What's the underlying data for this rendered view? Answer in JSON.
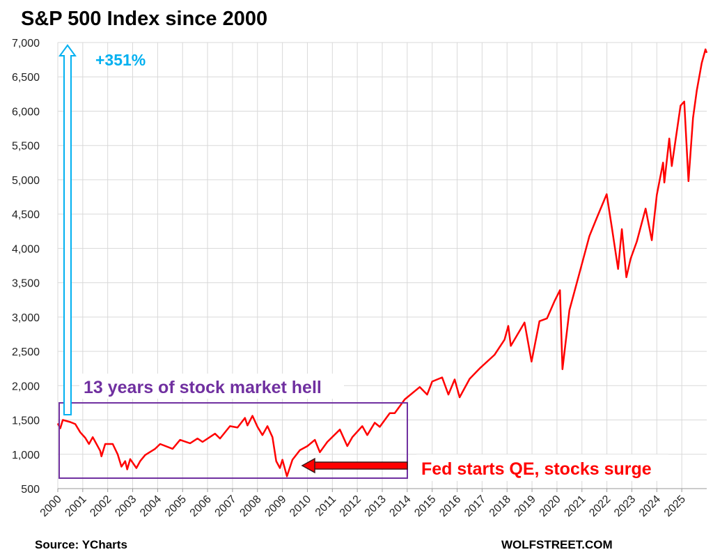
{
  "chart_data": {
    "type": "line",
    "title": "S&P 500  Index since 2000",
    "x": [
      2000.0,
      2000.1,
      2000.2,
      2000.5,
      2000.7,
      2000.9,
      2001.1,
      2001.25,
      2001.4,
      2001.7,
      2001.75,
      2001.9,
      2002.2,
      2002.4,
      2002.55,
      2002.7,
      2002.78,
      2002.9,
      2003.15,
      2003.3,
      2003.5,
      2003.9,
      2004.1,
      2004.6,
      2004.9,
      2005.3,
      2005.6,
      2005.8,
      2006.3,
      2006.5,
      2006.9,
      2007.2,
      2007.5,
      2007.6,
      2007.8,
      2008.0,
      2008.2,
      2008.4,
      2008.6,
      2008.75,
      2008.9,
      2009.0,
      2009.18,
      2009.4,
      2009.7,
      2010.0,
      2010.3,
      2010.5,
      2010.8,
      2011.3,
      2011.6,
      2011.8,
      2012.2,
      2012.4,
      2012.7,
      2012.9,
      2013.3,
      2013.5,
      2013.9,
      2014.5,
      2014.8,
      2015.0,
      2015.4,
      2015.65,
      2015.9,
      2016.1,
      2016.5,
      2016.9,
      2017.5,
      2017.9,
      2018.05,
      2018.15,
      2018.7,
      2018.98,
      2019.3,
      2019.6,
      2019.9,
      2020.12,
      2020.22,
      2020.5,
      2020.9,
      2021.3,
      2021.6,
      2021.99,
      2022.2,
      2022.45,
      2022.6,
      2022.78,
      2022.95,
      2023.2,
      2023.55,
      2023.8,
      2024.0,
      2024.25,
      2024.3,
      2024.5,
      2024.6,
      2024.95,
      2025.1,
      2025.27,
      2025.45,
      2025.6,
      2025.8,
      2025.95,
      2026.0
    ],
    "series": [
      {
        "name": "S&P 500",
        "color": "#ff0000",
        "values": [
          1450,
          1380,
          1500,
          1470,
          1440,
          1320,
          1240,
          1150,
          1250,
          1050,
          970,
          1150,
          1150,
          1000,
          820,
          900,
          780,
          930,
          800,
          900,
          990,
          1080,
          1150,
          1080,
          1210,
          1160,
          1230,
          1180,
          1300,
          1230,
          1410,
          1390,
          1530,
          1420,
          1560,
          1400,
          1280,
          1410,
          1250,
          900,
          800,
          920,
          680,
          920,
          1060,
          1120,
          1210,
          1030,
          1180,
          1360,
          1120,
          1250,
          1410,
          1280,
          1460,
          1400,
          1600,
          1600,
          1800,
          1980,
          1870,
          2060,
          2120,
          1870,
          2090,
          1830,
          2100,
          2250,
          2450,
          2670,
          2870,
          2580,
          2920,
          2350,
          2940,
          2980,
          3230,
          3390,
          2240,
          3100,
          3640,
          4180,
          4450,
          4790,
          4300,
          3700,
          4280,
          3580,
          3850,
          4100,
          4580,
          4120,
          4780,
          5250,
          4960,
          5600,
          5200,
          6080,
          6140,
          4980,
          5900,
          6300,
          6700,
          6900,
          6850
        ]
      }
    ],
    "xlim": [
      2000,
      2026
    ],
    "xticks": [
      2000,
      2001,
      2002,
      2003,
      2004,
      2005,
      2006,
      2007,
      2008,
      2009,
      2010,
      2011,
      2012,
      2013,
      2014,
      2015,
      2016,
      2017,
      2018,
      2019,
      2020,
      2021,
      2022,
      2023,
      2024,
      2025
    ],
    "ylim": [
      500,
      7000
    ],
    "yticks": [
      500,
      {
        "value": 1000,
        "label": "1,000"
      },
      {
        "value": 1500,
        "label": "1,500"
      },
      {
        "value": 2000,
        "label": "2,000"
      },
      {
        "value": 2500,
        "label": "2,500"
      },
      {
        "value": 3000,
        "label": "3,000"
      },
      {
        "value": 3500,
        "label": "3,500"
      },
      {
        "value": 4000,
        "label": "4,000"
      },
      {
        "value": 4500,
        "label": "4,500"
      },
      {
        "value": 5000,
        "label": "5,000"
      },
      {
        "value": 5500,
        "label": "5,500"
      },
      {
        "value": 6000,
        "label": "6,000"
      },
      {
        "value": 6500,
        "label": "6,500"
      },
      {
        "value": 7000,
        "label": "7,000"
      }
    ],
    "grid": true,
    "annotations": [
      "+351%",
      "13 years of stock market hell",
      "Fed starts QE, stocks surge"
    ],
    "source": "Source: YCharts",
    "credit": "WOLFSTREET.COM"
  }
}
